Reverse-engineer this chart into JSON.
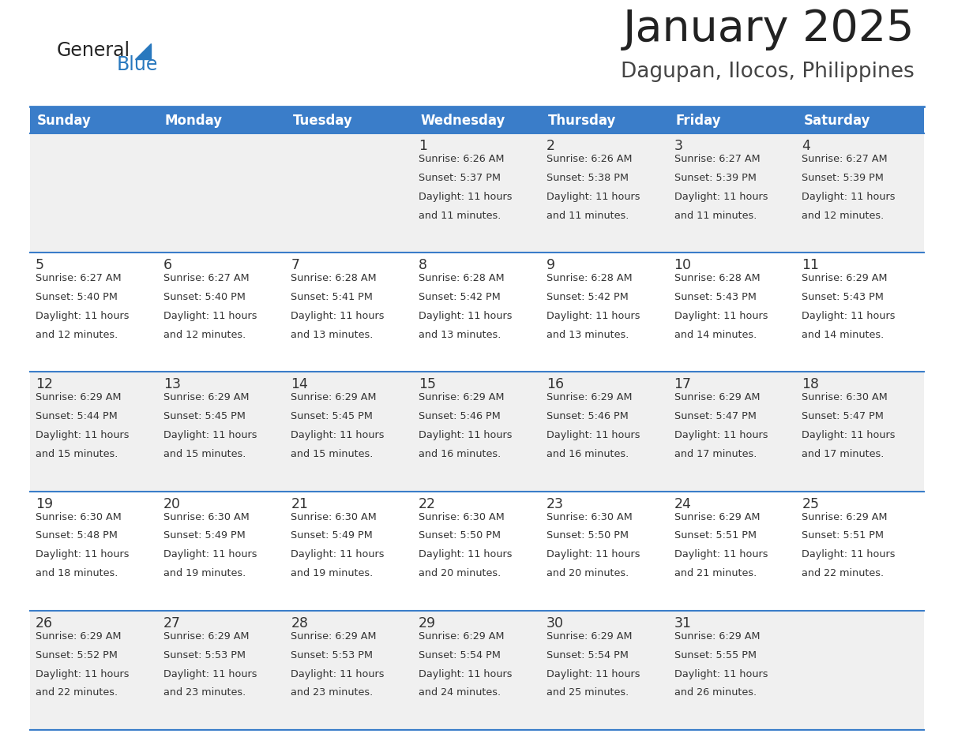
{
  "title": "January 2025",
  "subtitle": "Dagupan, Ilocos, Philippines",
  "days_of_week": [
    "Sunday",
    "Monday",
    "Tuesday",
    "Wednesday",
    "Thursday",
    "Friday",
    "Saturday"
  ],
  "header_bg": "#3A7DC9",
  "header_text": "#FFFFFF",
  "row_bg_odd": "#F0F0F0",
  "row_bg_even": "#FFFFFF",
  "cell_border": "#3A7DC9",
  "day_number_color": "#333333",
  "text_color": "#333333",
  "title_color": "#222222",
  "subtitle_color": "#444444",
  "logo_general_color": "#222222",
  "logo_blue_color": "#2878BE",
  "calendar_data": [
    [
      null,
      null,
      null,
      {
        "day": 1,
        "sunrise": "6:26 AM",
        "sunset": "5:37 PM",
        "daylight": "11 hours and 11 minutes."
      },
      {
        "day": 2,
        "sunrise": "6:26 AM",
        "sunset": "5:38 PM",
        "daylight": "11 hours and 11 minutes."
      },
      {
        "day": 3,
        "sunrise": "6:27 AM",
        "sunset": "5:39 PM",
        "daylight": "11 hours and 11 minutes."
      },
      {
        "day": 4,
        "sunrise": "6:27 AM",
        "sunset": "5:39 PM",
        "daylight": "11 hours and 12 minutes."
      }
    ],
    [
      {
        "day": 5,
        "sunrise": "6:27 AM",
        "sunset": "5:40 PM",
        "daylight": "11 hours and 12 minutes."
      },
      {
        "day": 6,
        "sunrise": "6:27 AM",
        "sunset": "5:40 PM",
        "daylight": "11 hours and 12 minutes."
      },
      {
        "day": 7,
        "sunrise": "6:28 AM",
        "sunset": "5:41 PM",
        "daylight": "11 hours and 13 minutes."
      },
      {
        "day": 8,
        "sunrise": "6:28 AM",
        "sunset": "5:42 PM",
        "daylight": "11 hours and 13 minutes."
      },
      {
        "day": 9,
        "sunrise": "6:28 AM",
        "sunset": "5:42 PM",
        "daylight": "11 hours and 13 minutes."
      },
      {
        "day": 10,
        "sunrise": "6:28 AM",
        "sunset": "5:43 PM",
        "daylight": "11 hours and 14 minutes."
      },
      {
        "day": 11,
        "sunrise": "6:29 AM",
        "sunset": "5:43 PM",
        "daylight": "11 hours and 14 minutes."
      }
    ],
    [
      {
        "day": 12,
        "sunrise": "6:29 AM",
        "sunset": "5:44 PM",
        "daylight": "11 hours and 15 minutes."
      },
      {
        "day": 13,
        "sunrise": "6:29 AM",
        "sunset": "5:45 PM",
        "daylight": "11 hours and 15 minutes."
      },
      {
        "day": 14,
        "sunrise": "6:29 AM",
        "sunset": "5:45 PM",
        "daylight": "11 hours and 15 minutes."
      },
      {
        "day": 15,
        "sunrise": "6:29 AM",
        "sunset": "5:46 PM",
        "daylight": "11 hours and 16 minutes."
      },
      {
        "day": 16,
        "sunrise": "6:29 AM",
        "sunset": "5:46 PM",
        "daylight": "11 hours and 16 minutes."
      },
      {
        "day": 17,
        "sunrise": "6:29 AM",
        "sunset": "5:47 PM",
        "daylight": "11 hours and 17 minutes."
      },
      {
        "day": 18,
        "sunrise": "6:30 AM",
        "sunset": "5:47 PM",
        "daylight": "11 hours and 17 minutes."
      }
    ],
    [
      {
        "day": 19,
        "sunrise": "6:30 AM",
        "sunset": "5:48 PM",
        "daylight": "11 hours and 18 minutes."
      },
      {
        "day": 20,
        "sunrise": "6:30 AM",
        "sunset": "5:49 PM",
        "daylight": "11 hours and 19 minutes."
      },
      {
        "day": 21,
        "sunrise": "6:30 AM",
        "sunset": "5:49 PM",
        "daylight": "11 hours and 19 minutes."
      },
      {
        "day": 22,
        "sunrise": "6:30 AM",
        "sunset": "5:50 PM",
        "daylight": "11 hours and 20 minutes."
      },
      {
        "day": 23,
        "sunrise": "6:30 AM",
        "sunset": "5:50 PM",
        "daylight": "11 hours and 20 minutes."
      },
      {
        "day": 24,
        "sunrise": "6:29 AM",
        "sunset": "5:51 PM",
        "daylight": "11 hours and 21 minutes."
      },
      {
        "day": 25,
        "sunrise": "6:29 AM",
        "sunset": "5:51 PM",
        "daylight": "11 hours and 22 minutes."
      }
    ],
    [
      {
        "day": 26,
        "sunrise": "6:29 AM",
        "sunset": "5:52 PM",
        "daylight": "11 hours and 22 minutes."
      },
      {
        "day": 27,
        "sunrise": "6:29 AM",
        "sunset": "5:53 PM",
        "daylight": "11 hours and 23 minutes."
      },
      {
        "day": 28,
        "sunrise": "6:29 AM",
        "sunset": "5:53 PM",
        "daylight": "11 hours and 23 minutes."
      },
      {
        "day": 29,
        "sunrise": "6:29 AM",
        "sunset": "5:54 PM",
        "daylight": "11 hours and 24 minutes."
      },
      {
        "day": 30,
        "sunrise": "6:29 AM",
        "sunset": "5:54 PM",
        "daylight": "11 hours and 25 minutes."
      },
      {
        "day": 31,
        "sunrise": "6:29 AM",
        "sunset": "5:55 PM",
        "daylight": "11 hours and 26 minutes."
      },
      null
    ]
  ]
}
